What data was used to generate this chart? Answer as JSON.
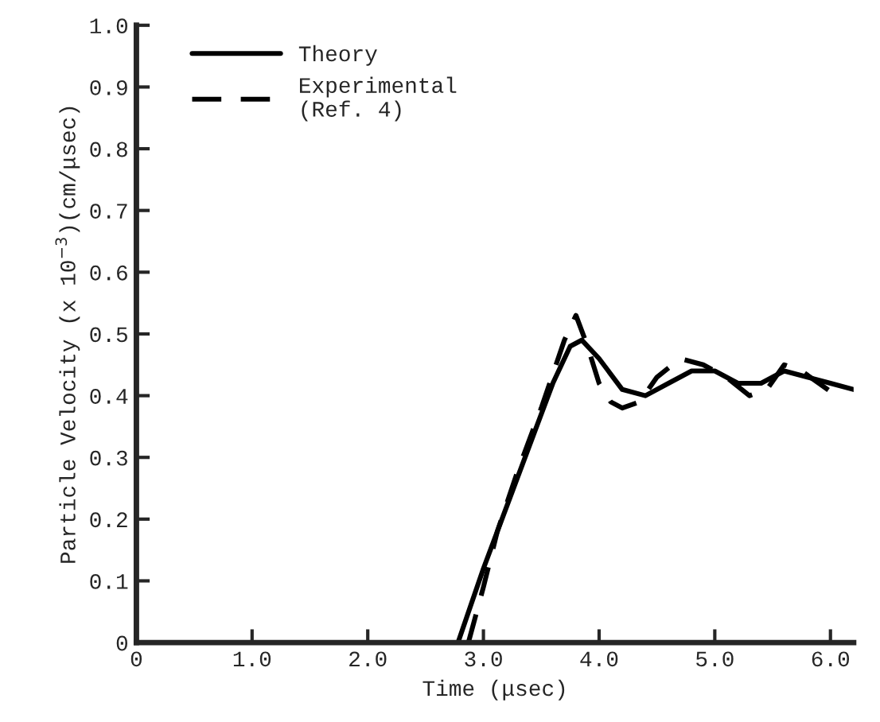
{
  "chart_data": {
    "type": "line",
    "xlabel": "Time (μsec)",
    "ylabel": "Particle Velocity (x 10$^{−3}$)(cm/μsec)",
    "xlim": [
      0,
      6.2
    ],
    "ylim": [
      0,
      1.0
    ],
    "xticks": [
      0,
      {
        "value": 1.0,
        "label": "1.0"
      },
      {
        "value": 2.0,
        "label": "2.0"
      },
      {
        "value": 3.0,
        "label": "3.0"
      },
      {
        "value": 4.0,
        "label": "4.0"
      },
      {
        "value": 5.0,
        "label": "5.0"
      },
      {
        "value": 6.0,
        "label": "6.0"
      }
    ],
    "yticks": [
      0,
      0.1,
      0.2,
      0.3,
      0.4,
      0.5,
      0.6,
      0.7,
      0.8,
      0.9,
      {
        "value": 1.0,
        "label": "1.0"
      }
    ],
    "grid": false,
    "legend": "top left",
    "series": [
      {
        "name": "Theory",
        "color": "#000000",
        "line_style": "solid",
        "x": [
          2.78,
          3.0,
          3.2,
          3.4,
          3.6,
          3.75,
          3.85,
          4.0,
          4.2,
          4.4,
          4.6,
          4.8,
          5.0,
          5.2,
          5.4,
          5.6,
          5.8,
          6.0,
          6.2
        ],
        "values": [
          0,
          0.12,
          0.22,
          0.32,
          0.42,
          0.48,
          0.49,
          0.46,
          0.41,
          0.4,
          0.42,
          0.44,
          0.44,
          0.42,
          0.42,
          0.44,
          0.43,
          0.42,
          0.41
        ]
      },
      {
        "name": "Experimental\n(Ref. 4)",
        "color": "#000000",
        "line_style": "dashed",
        "x": [
          2.87,
          3.0,
          3.12,
          3.3,
          3.5,
          3.7,
          3.8,
          3.9,
          4.0,
          4.1,
          4.2,
          4.35,
          4.5,
          4.7,
          4.9,
          5.1,
          5.3,
          5.45,
          5.6,
          5.75,
          5.9,
          6.05
        ],
        "values": [
          0,
          0.09,
          0.18,
          0.28,
          0.38,
          0.49,
          0.53,
          0.48,
          0.42,
          0.39,
          0.38,
          0.39,
          0.43,
          0.46,
          0.45,
          0.43,
          0.4,
          0.41,
          0.45,
          0.44,
          0.42,
          0.4
        ]
      }
    ]
  }
}
